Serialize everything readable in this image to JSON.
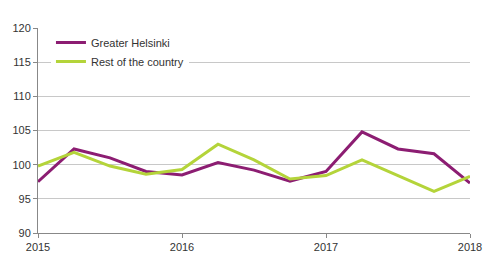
{
  "chart_data": {
    "type": "line",
    "categories": [
      "2015",
      null,
      null,
      null,
      "2016",
      null,
      null,
      null,
      "2017",
      null,
      null,
      null,
      "2018"
    ],
    "series": [
      {
        "name": "Greater Helsinki",
        "color": "#8c1d72",
        "values": [
          97.5,
          102.3,
          101.0,
          99.0,
          98.5,
          100.3,
          99.2,
          97.6,
          99.0,
          104.8,
          102.3,
          101.6,
          97.3
        ]
      },
      {
        "name": "Rest of the country",
        "color": "#b4d43a",
        "values": [
          99.8,
          101.8,
          99.8,
          98.6,
          99.3,
          103.0,
          100.7,
          97.9,
          98.4,
          100.7,
          98.4,
          96.1,
          98.3
        ]
      }
    ],
    "ylim": [
      90,
      120
    ],
    "yticks": [
      90,
      95,
      100,
      105,
      110,
      115,
      120
    ],
    "grid": true,
    "legend": "top left"
  }
}
